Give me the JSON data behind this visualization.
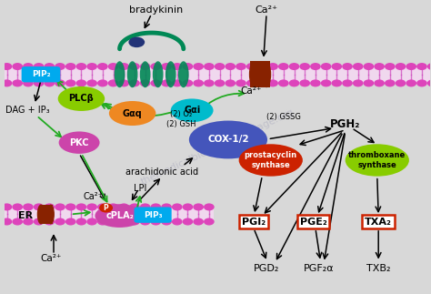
{
  "bg_color": "#d8d8d8",
  "colors": {
    "PIP2": "#00aaee",
    "PLCb": "#88cc00",
    "Goq": "#ee8822",
    "Gai": "#00bbcc",
    "PKC": "#cc44aa",
    "COX": "#4455bb",
    "cPLA2": "#cc44aa",
    "prostacyclin": "#cc2200",
    "thromboxane": "#88cc00",
    "box_border": "#cc2200",
    "receptor": "#008855",
    "receptor_cap": "#223377",
    "channel": "#882200",
    "ER_channel": "#882200",
    "P_dot": "#cc2200",
    "green_arrow": "#22aa22",
    "mem_head": "#dd44bb",
    "mem_core": "#f0d8ee"
  },
  "labels": {
    "PIP2": "PIP₂",
    "PLCb": "PLCβ",
    "Goq": "Gαq",
    "Gai": "Gαi",
    "PKC": "PKC",
    "COX": "COX-1/2",
    "cPLA2": "cPLA₂",
    "prostacyclin": "prostacyclin\nsynthase",
    "thromboxane": "thromboxane\nsynthase",
    "PGI2": "PGI₂",
    "PGE2": "PGE₂",
    "TXA2": "TXA₂",
    "PGH2": "PGH₂",
    "PGD2": "PGD₂",
    "PGF2a": "PGF₂α",
    "TXB2": "TXB₂",
    "PIP3": "PIP₃",
    "ER": "ER",
    "bradykinin": "bradykinin",
    "Ca2": "Ca²⁺",
    "DAG": "DAG + IP₃",
    "arachidonic": "arachidonic acid",
    "LPI": "LPI",
    "O2_GSH": "(2) O₂\n(2) GSH",
    "GSSG": "(2) GSSG",
    "P": "P"
  }
}
